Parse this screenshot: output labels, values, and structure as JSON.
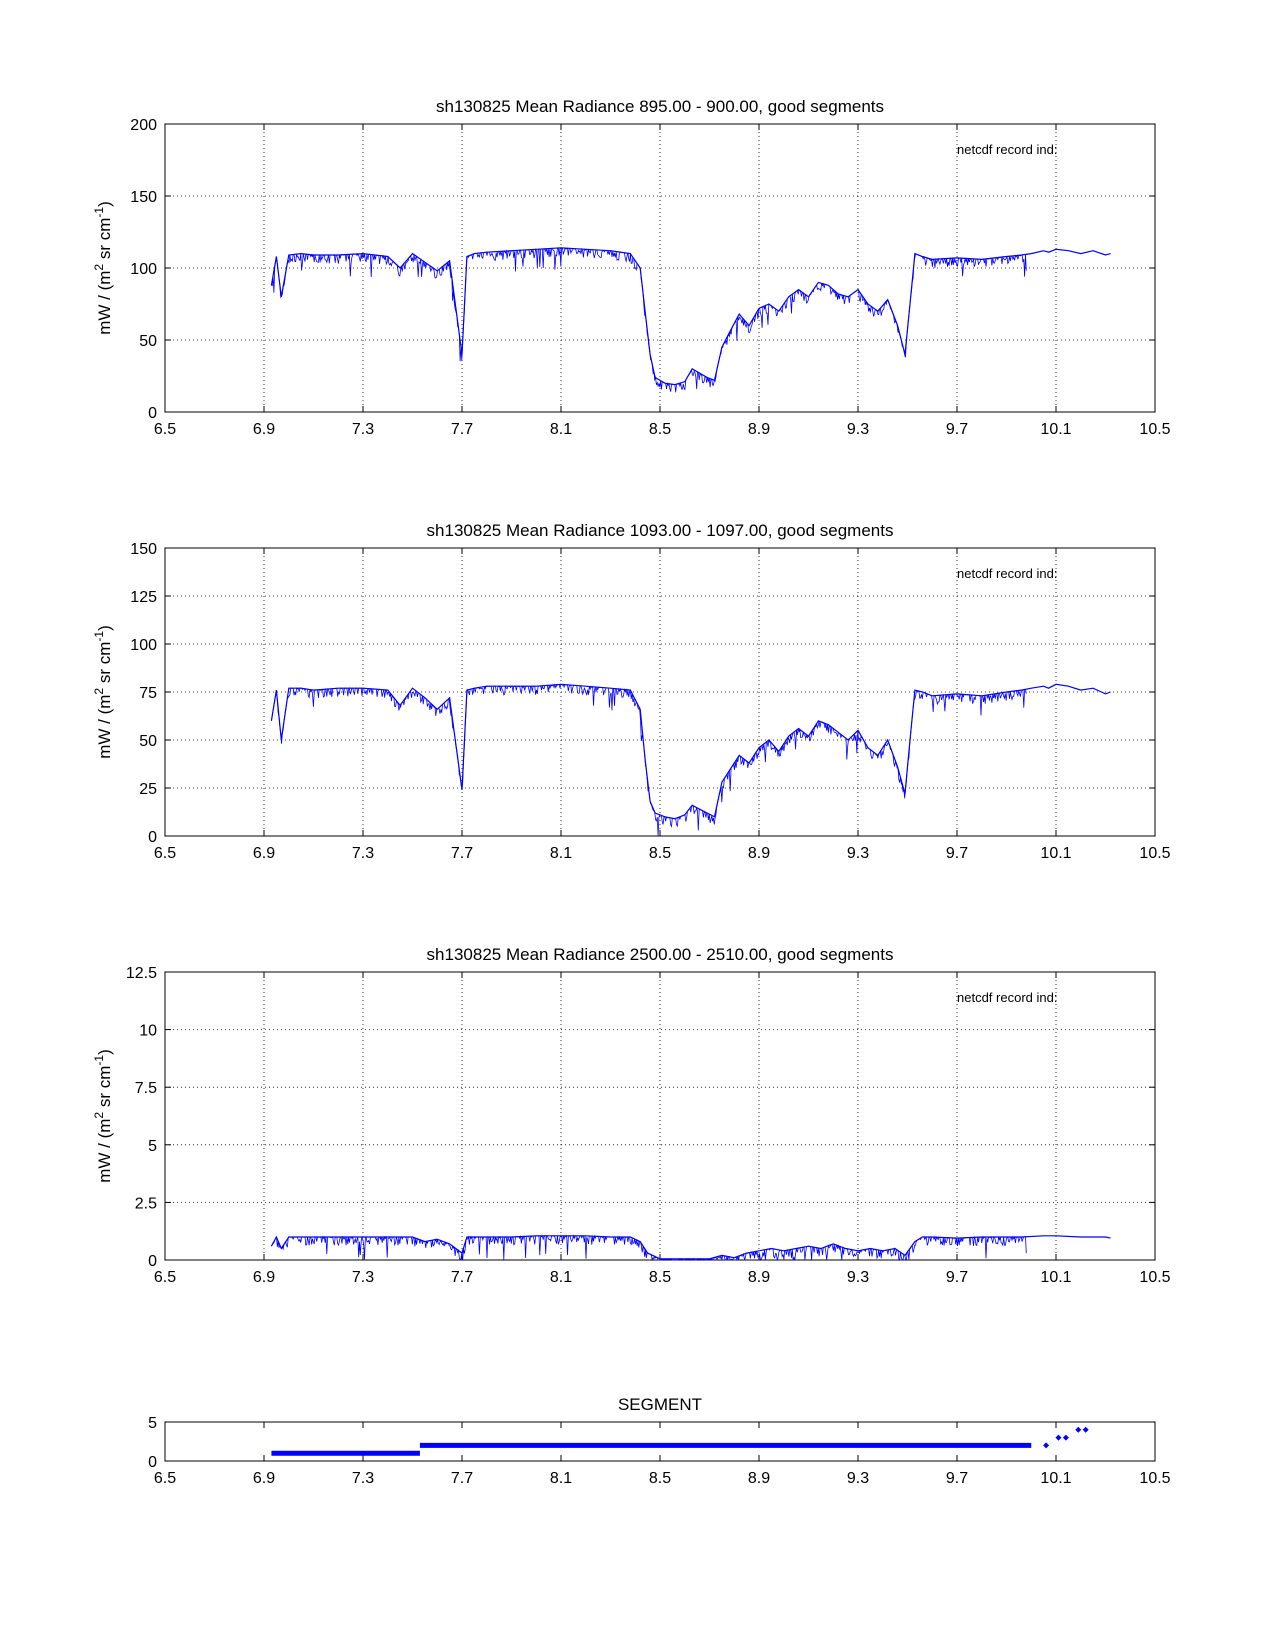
{
  "figure": {
    "line_color": "#0000ff",
    "grid_style": "dotted",
    "annotation": "netcdf record ind:"
  },
  "chart_data": [
    {
      "type": "line",
      "title": "sh130825 Mean Radiance 895.00 - 900.00, good segments",
      "xlabel": "",
      "ylabel_main": "mW / (m",
      "ylabel_sup1": "2",
      "ylabel_mid": " sr cm",
      "ylabel_sup2": "-1",
      "ylabel_end": ")",
      "annotation": "netcdf record ind:",
      "xlim": [
        6.5,
        10.5
      ],
      "ylim": [
        0,
        200
      ],
      "xticks": [
        "6.5",
        "6.9",
        "7.3",
        "7.7",
        "8.1",
        "8.5",
        "8.9",
        "9.3",
        "9.7",
        "10.1",
        "10.5"
      ],
      "yticks": [
        "0",
        "50",
        "100",
        "150",
        "200"
      ],
      "grid": true,
      "series": [
        {
          "x": [
            6.93,
            6.95,
            6.97,
            7.0,
            7.05,
            7.1,
            7.2,
            7.3,
            7.4,
            7.45,
            7.5,
            7.55,
            7.6,
            7.65,
            7.7,
            7.72,
            7.75,
            7.8,
            7.9,
            8.0,
            8.1,
            8.2,
            8.3,
            8.38,
            8.42,
            8.44,
            8.46,
            8.48,
            8.52,
            8.56,
            8.6,
            8.63,
            8.66,
            8.69,
            8.72,
            8.75,
            8.78,
            8.82,
            8.86,
            8.9,
            8.94,
            8.98,
            9.02,
            9.06,
            9.1,
            9.14,
            9.18,
            9.22,
            9.26,
            9.3,
            9.34,
            9.38,
            9.42,
            9.46,
            9.49,
            9.51,
            9.53,
            9.56,
            9.6,
            9.7,
            9.8,
            9.9,
            9.96,
            10.0,
            10.05,
            10.07,
            10.1,
            10.15,
            10.2,
            10.25,
            10.3,
            10.32
          ],
          "y": [
            88,
            108,
            80,
            109,
            110,
            109,
            109,
            110,
            108,
            100,
            110,
            104,
            98,
            105,
            40,
            108,
            110,
            111,
            112,
            113,
            114,
            113,
            112,
            110,
            100,
            70,
            40,
            24,
            20,
            19,
            21,
            30,
            27,
            24,
            22,
            45,
            55,
            68,
            60,
            72,
            75,
            70,
            80,
            85,
            80,
            90,
            88,
            82,
            80,
            85,
            75,
            70,
            78,
            60,
            40,
            75,
            110,
            108,
            106,
            107,
            106,
            108,
            109,
            110,
            112,
            111,
            113,
            112,
            110,
            112,
            109,
            110
          ]
        }
      ]
    },
    {
      "type": "line",
      "title": "sh130825 Mean Radiance 1093.00 - 1097.00, good segments",
      "xlabel": "",
      "ylabel_main": "mW / (m",
      "ylabel_sup1": "2",
      "ylabel_mid": " sr cm",
      "ylabel_sup2": "-1",
      "ylabel_end": ")",
      "annotation": "netcdf record ind:",
      "xlim": [
        6.5,
        10.5
      ],
      "ylim": [
        0,
        150
      ],
      "xticks": [
        "6.5",
        "6.9",
        "7.3",
        "7.7",
        "8.1",
        "8.5",
        "8.9",
        "9.3",
        "9.7",
        "10.1",
        "10.5"
      ],
      "yticks": [
        "0",
        "25",
        "50",
        "75",
        "100",
        "125",
        "150"
      ],
      "grid": true,
      "series": [
        {
          "x": [
            6.93,
            6.95,
            6.97,
            7.0,
            7.05,
            7.1,
            7.2,
            7.3,
            7.4,
            7.45,
            7.5,
            7.55,
            7.6,
            7.65,
            7.7,
            7.72,
            7.75,
            7.8,
            7.9,
            8.0,
            8.1,
            8.2,
            8.3,
            8.38,
            8.42,
            8.44,
            8.46,
            8.48,
            8.52,
            8.56,
            8.6,
            8.63,
            8.66,
            8.69,
            8.72,
            8.75,
            8.78,
            8.82,
            8.86,
            8.9,
            8.94,
            8.98,
            9.02,
            9.06,
            9.1,
            9.14,
            9.18,
            9.22,
            9.26,
            9.3,
            9.34,
            9.38,
            9.42,
            9.46,
            9.49,
            9.51,
            9.53,
            9.56,
            9.6,
            9.7,
            9.8,
            9.9,
            9.96,
            10.0,
            10.05,
            10.07,
            10.1,
            10.15,
            10.2,
            10.25,
            10.3,
            10.32
          ],
          "y": [
            60,
            76,
            50,
            77,
            77,
            76,
            77,
            77,
            76,
            68,
            77,
            72,
            66,
            72,
            24,
            76,
            77,
            78,
            78,
            78,
            79,
            78,
            77,
            76,
            66,
            40,
            18,
            12,
            10,
            9,
            11,
            16,
            14,
            12,
            10,
            28,
            34,
            42,
            38,
            46,
            50,
            44,
            52,
            56,
            52,
            60,
            58,
            54,
            50,
            55,
            46,
            42,
            50,
            36,
            22,
            50,
            76,
            75,
            73,
            74,
            73,
            75,
            76,
            77,
            78,
            77,
            79,
            78,
            76,
            77,
            74,
            75
          ]
        }
      ]
    },
    {
      "type": "line",
      "title": "sh130825 Mean Radiance 2500.00 - 2510.00, good segments",
      "xlabel": "",
      "ylabel_main": "mW / (m",
      "ylabel_sup1": "2",
      "ylabel_mid": " sr cm",
      "ylabel_sup2": "-1",
      "ylabel_end": ")",
      "annotation": "netcdf record ind:",
      "xlim": [
        6.5,
        10.5
      ],
      "ylim": [
        0,
        12.5
      ],
      "xticks": [
        "6.5",
        "6.9",
        "7.3",
        "7.7",
        "8.1",
        "8.5",
        "8.9",
        "9.3",
        "9.7",
        "10.1",
        "10.5"
      ],
      "yticks": [
        "0",
        "2.5",
        "5",
        "7.5",
        "10",
        "12.5"
      ],
      "grid": true,
      "series": [
        {
          "x": [
            6.93,
            6.95,
            6.97,
            7.0,
            7.1,
            7.2,
            7.3,
            7.4,
            7.5,
            7.55,
            7.6,
            7.65,
            7.7,
            7.72,
            7.75,
            7.8,
            7.9,
            8.0,
            8.1,
            8.2,
            8.3,
            8.38,
            8.42,
            8.45,
            8.5,
            8.6,
            8.7,
            8.75,
            8.8,
            8.85,
            8.9,
            8.95,
            9.0,
            9.05,
            9.1,
            9.15,
            9.2,
            9.25,
            9.3,
            9.35,
            9.4,
            9.45,
            9.49,
            9.53,
            9.56,
            9.6,
            9.7,
            9.8,
            9.9,
            9.96,
            10.05,
            10.1,
            10.2,
            10.3,
            10.32
          ],
          "y": [
            0.6,
            1.0,
            0.5,
            1.0,
            1.0,
            1.0,
            1.0,
            1.0,
            1.0,
            0.8,
            0.9,
            0.7,
            0.3,
            1.0,
            1.0,
            1.0,
            1.0,
            1.05,
            1.05,
            1.05,
            1.0,
            1.0,
            0.8,
            0.3,
            0.05,
            0.05,
            0.05,
            0.2,
            0.1,
            0.3,
            0.4,
            0.5,
            0.4,
            0.5,
            0.6,
            0.5,
            0.7,
            0.5,
            0.4,
            0.5,
            0.4,
            0.5,
            0.2,
            0.8,
            1.0,
            1.0,
            0.95,
            1.0,
            1.0,
            1.0,
            1.05,
            1.05,
            1.0,
            1.0,
            0.95
          ]
        }
      ]
    },
    {
      "type": "scatter",
      "title": "SEGMENT",
      "xlabel": "",
      "xlim": [
        6.5,
        10.5
      ],
      "ylim": [
        0,
        5
      ],
      "xticks": [
        "6.5",
        "6.9",
        "7.3",
        "7.7",
        "8.1",
        "8.5",
        "8.9",
        "9.3",
        "9.7",
        "10.1",
        "10.5"
      ],
      "yticks": [
        "0",
        "5"
      ],
      "grid": false,
      "segments": [
        {
          "x_start": 6.93,
          "x_end": 7.53,
          "y": 1
        },
        {
          "x_start": 7.53,
          "x_end": 10.0,
          "y": 2
        }
      ],
      "points": [
        {
          "x": 10.06,
          "y": 2
        },
        {
          "x": 10.11,
          "y": 3
        },
        {
          "x": 10.14,
          "y": 3
        },
        {
          "x": 10.19,
          "y": 4
        },
        {
          "x": 10.22,
          "y": 4
        }
      ]
    }
  ]
}
